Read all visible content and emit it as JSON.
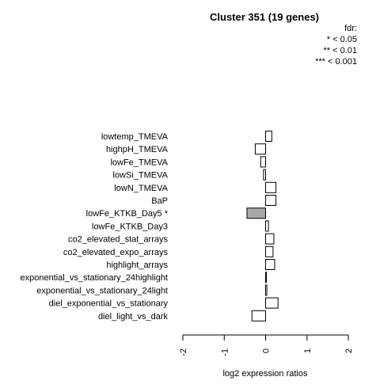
{
  "chart_data": {
    "type": "bar",
    "orientation": "horizontal",
    "title": "Cluster 351 (19 genes)",
    "xlabel": "log2 expression ratios",
    "xlim": [
      -2,
      2
    ],
    "x_ticks": [
      "-2",
      "-1",
      "0",
      "1",
      "2"
    ],
    "legend": {
      "title": "fdr:",
      "entries": [
        "* < 0.05",
        "** < 0.01",
        "*** < 0.001"
      ],
      "placement": "top-right"
    },
    "categories": [
      "lowtemp_TMEVA",
      "highpH_TMEVA",
      "lowFe_TMEVA",
      "lowSi_TMEVA",
      "lowN_TMEVA",
      "BaP",
      "lowFe_KTKB_Day5 *",
      "lowFe_KTKB_Day3",
      "co2_elevated_stat_arrays",
      "co2_elevated_expo_arrays",
      "highlight_arrays",
      "exponential_vs_stationary_24highlight",
      "exponential_vs_stationary_24light",
      "diel_exponential_vs_stationary",
      "diel_light_vs_dark"
    ],
    "values": [
      0.15,
      -0.25,
      -0.12,
      -0.05,
      0.25,
      0.25,
      -0.45,
      0.07,
      0.2,
      0.18,
      0.22,
      0.02,
      0.03,
      0.3,
      -0.33
    ],
    "significant": [
      false,
      false,
      false,
      false,
      false,
      false,
      true,
      false,
      false,
      false,
      false,
      false,
      false,
      false,
      false
    ],
    "colors": {
      "normal": "#ffffff",
      "significant": "#a8a8a8",
      "stroke": "#000000"
    }
  }
}
